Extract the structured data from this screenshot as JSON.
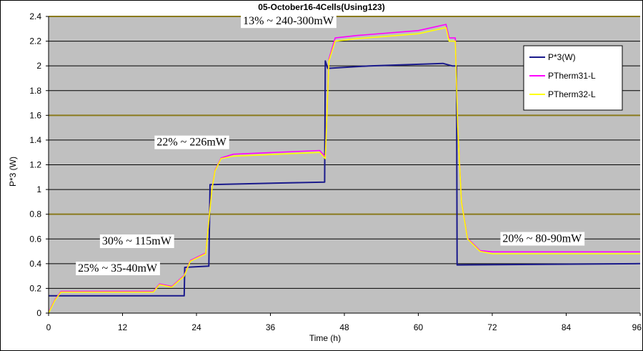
{
  "chart_data": {
    "type": "line",
    "title": "05-October16-4Cells(Using123)",
    "xlabel": "Time (h)",
    "ylabel": "P*3 (W)",
    "xlim": [
      0,
      96
    ],
    "ylim": [
      0,
      2.4
    ],
    "x_ticks": [
      "0",
      "12",
      "24",
      "36",
      "48",
      "60",
      "72",
      "84",
      "96"
    ],
    "y_ticks": [
      "0",
      "0.2",
      "0.4",
      "0.6",
      "0.8",
      "1",
      "1.2",
      "1.4",
      "1.6",
      "1.8",
      "2",
      "2.2",
      "2.4"
    ],
    "grid": true,
    "legend_position": "top-right",
    "series": [
      {
        "name": "P*3(W)",
        "color": "#1a1a8c",
        "x": [
          0,
          22,
          22.1,
          26,
          26.2,
          44.8,
          44.9,
          45.3,
          52,
          64,
          65.5,
          66.2,
          66.3,
          96
        ],
        "y": [
          0.14,
          0.14,
          0.37,
          0.38,
          1.04,
          1.06,
          2.04,
          1.98,
          2.0,
          2.02,
          2.0,
          2.0,
          0.39,
          0.4
        ]
      },
      {
        "name": "PTherm31-L",
        "color": "#ff00ff",
        "x": [
          0,
          1,
          2,
          17,
          18,
          20,
          22,
          23,
          25.5,
          26.5,
          27,
          28,
          30,
          44,
          44.9,
          45.5,
          46.5,
          50,
          60,
          64.5,
          65,
          66,
          66.4,
          67,
          68,
          70,
          72,
          96
        ],
        "y": [
          0,
          0.1,
          0.17,
          0.17,
          0.23,
          0.21,
          0.3,
          0.42,
          0.48,
          1.0,
          1.15,
          1.25,
          1.28,
          1.31,
          1.26,
          2.05,
          2.22,
          2.24,
          2.28,
          2.33,
          2.22,
          2.22,
          1.5,
          0.9,
          0.6,
          0.5,
          0.49,
          0.49
        ]
      },
      {
        "name": "PTherm32-L",
        "color": "#ffff00",
        "x": [
          0,
          1,
          2,
          17,
          18,
          20,
          22,
          23,
          25.5,
          26.5,
          27,
          28,
          30,
          44,
          44.9,
          45.5,
          46.5,
          50,
          60,
          64.5,
          65,
          66,
          66.4,
          67,
          68,
          70,
          72,
          96
        ],
        "y": [
          0,
          0.1,
          0.17,
          0.17,
          0.23,
          0.21,
          0.3,
          0.42,
          0.48,
          1.0,
          1.15,
          1.25,
          1.27,
          1.3,
          1.25,
          2.04,
          2.2,
          2.22,
          2.26,
          2.31,
          2.2,
          2.2,
          1.5,
          0.9,
          0.6,
          0.5,
          0.48,
          0.48
        ]
      }
    ],
    "annotations": [
      {
        "text": "13% ~ 240-300mW",
        "x": 38.9,
        "y": 2.37
      },
      {
        "text": "22% ~ 226mW",
        "x": 23.2,
        "y": 1.39
      },
      {
        "text": "30% ~ 115mW",
        "x": 14.3,
        "y": 0.59
      },
      {
        "text": "25% ~ 35-40mW",
        "x": 11.2,
        "y": 0.37
      },
      {
        "text": "20% ~ 80-90mW",
        "x": 80.1,
        "y": 0.61
      }
    ],
    "highlight_gridlines": [
      0.8,
      1.6,
      2.4
    ]
  }
}
